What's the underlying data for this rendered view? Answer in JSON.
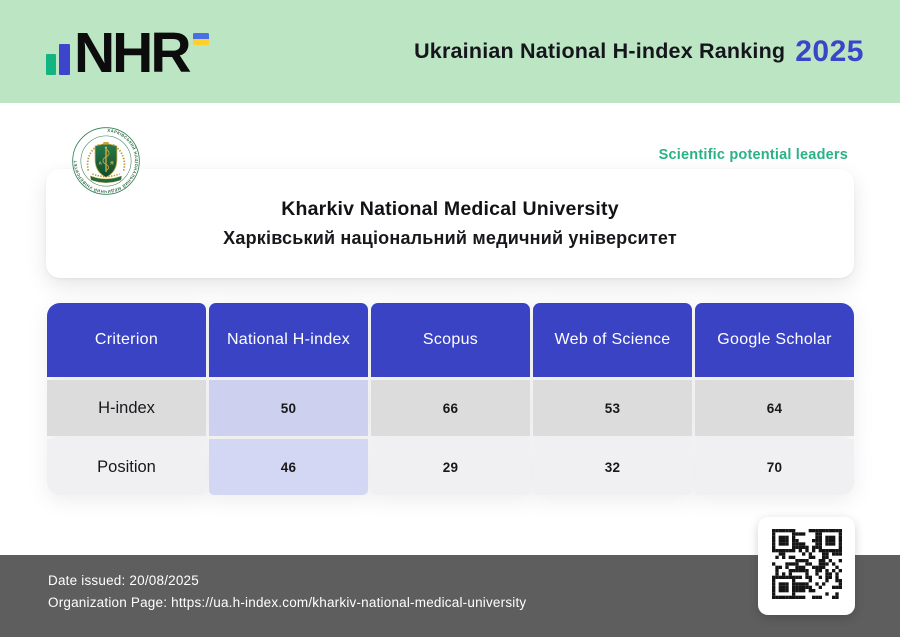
{
  "brand": {
    "logo_text": "NHR",
    "ranking_title": "Ukrainian National H-index Ranking",
    "year": "2025"
  },
  "leaders_badge": "Scientific potential leaders",
  "university": {
    "name_en": "Kharkiv National Medical University",
    "name_uk": "Харківський національний медичний університет",
    "emblem_ring_text": "ХАРКІВСЬКИЙ НАЦІОНАЛЬНИЙ МЕДИЧНИЙ УНІВЕРСИТЕТ",
    "emblem_monogram_left": "А",
    "emblem_monogram_right": "Я"
  },
  "table": {
    "columns": [
      "Criterion",
      "National H-index",
      "Scopus",
      "Web of Science",
      "Google Scholar"
    ],
    "rows": [
      {
        "label": "H-index",
        "values": [
          "50",
          "66",
          "53",
          "64"
        ]
      },
      {
        "label": "Position",
        "values": [
          "46",
          "29",
          "32",
          "70"
        ]
      }
    ]
  },
  "footer": {
    "date_label": "Date issued:",
    "date_value": "20/08/2025",
    "org_label": "Organization Page:",
    "org_url": "https://ua.h-index.com/kharkiv-national-medical-university"
  },
  "icons": {
    "flag": "ukraine-flag-icon",
    "emblem": "knmu-emblem-icon",
    "qr": "qr-code-icon"
  },
  "colors": {
    "header_bg": "#bce5c4",
    "accent_blue": "#3b45c7",
    "accent_green": "#2ab287",
    "table_header_bg": "#3a43c4",
    "highlight_column": "#cdd1ef",
    "row_grey": "#dcdcdd",
    "row_light": "#f0f0f2",
    "footer_bg": "#5e5e5e",
    "flag_blue": "#4a6fe0",
    "flag_yellow": "#ffd02c"
  }
}
